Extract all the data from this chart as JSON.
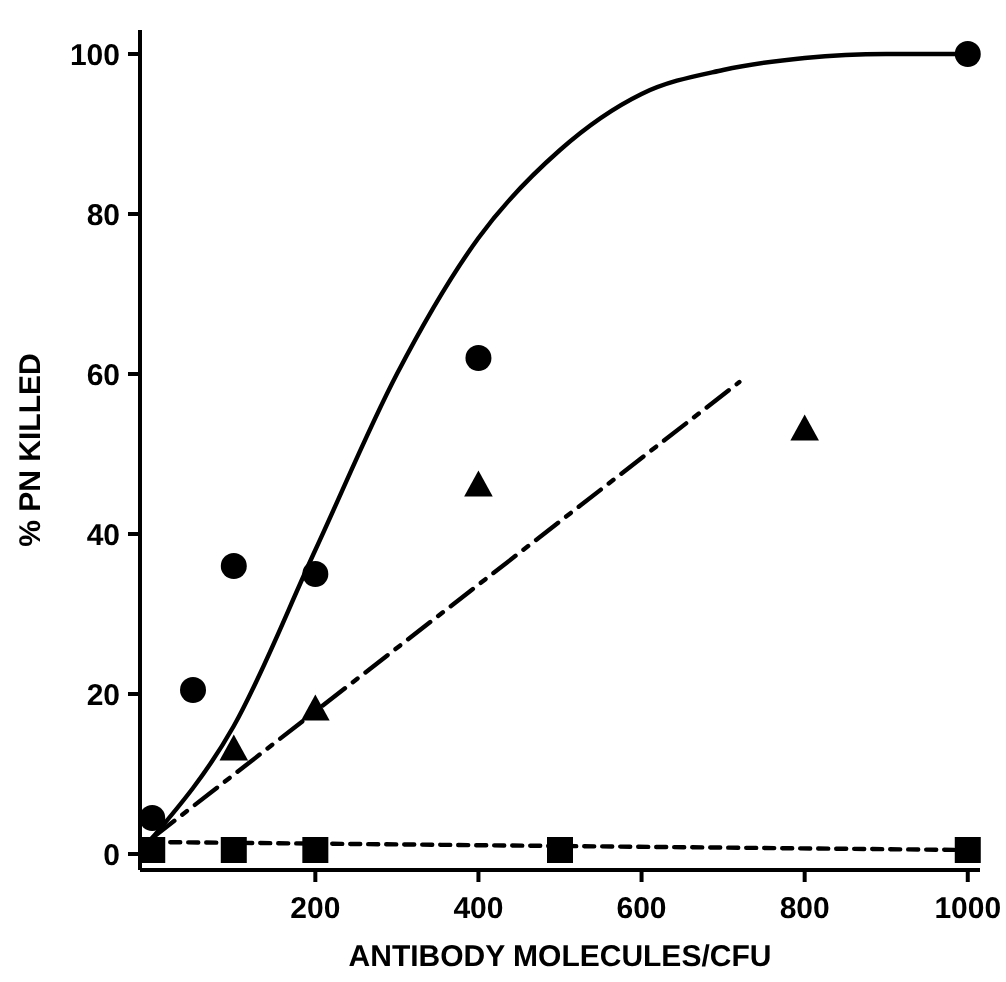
{
  "chart_data": {
    "type": "scatter",
    "xlabel": "ANTIBODY MOLECULES/CFU",
    "ylabel": "% PN KILLED",
    "xlim": [
      -15,
      1015
    ],
    "ylim": [
      -2,
      103
    ],
    "xticks": [
      200,
      400,
      600,
      800,
      1000
    ],
    "yticks": [
      0,
      20,
      40,
      60,
      80,
      100
    ],
    "grid": false,
    "series": [
      {
        "type": "line",
        "color": "#000000",
        "marker": "none",
        "line_style": "solid",
        "x": [
          0,
          100,
          200,
          300,
          400,
          500,
          600,
          700,
          800,
          900,
          1000
        ],
        "values": [
          2,
          16,
          38,
          60,
          77,
          88,
          95,
          98,
          99.5,
          100,
          100
        ]
      },
      {
        "type": "line",
        "color": "#000000",
        "marker": "none",
        "line_style": "dashdot",
        "x": [
          0,
          720
        ],
        "values": [
          2,
          59
        ]
      },
      {
        "type": "line",
        "color": "#000000",
        "marker": "none",
        "line_style": "dashed",
        "x": [
          0,
          1000
        ],
        "values": [
          1.5,
          0.5
        ]
      },
      {
        "color": "#000000",
        "marker": "circle",
        "x": [
          0,
          50,
          100,
          200,
          400,
          1000
        ],
        "values": [
          4.5,
          20.5,
          36,
          35,
          62,
          100
        ]
      },
      {
        "color": "#000000",
        "marker": "triangle",
        "x": [
          100,
          200,
          400,
          800
        ],
        "values": [
          13,
          18,
          46,
          53
        ]
      },
      {
        "color": "#000000",
        "marker": "square",
        "x": [
          0,
          100,
          200,
          500,
          1000
        ],
        "values": [
          0.5,
          0.5,
          0.5,
          0.5,
          0.5
        ]
      }
    ]
  }
}
